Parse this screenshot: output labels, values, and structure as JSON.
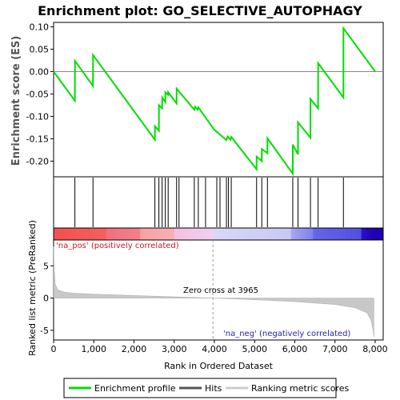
{
  "chart_data": {
    "type": "line",
    "title": "Enrichment plot: GO_SELECTIVE_AUTOPHAGY",
    "es_panel": {
      "ylabel": "Enrichment score (ES)",
      "ylim": [
        -0.235,
        0.11
      ],
      "yticks": [
        0.1,
        0.05,
        0.0,
        -0.05,
        -0.1,
        -0.15,
        -0.2
      ],
      "ytick_labels": [
        "0.10",
        "0.05",
        "0.00",
        "-0.05",
        "-0.10",
        "-0.15",
        "-0.20"
      ],
      "series": [
        {
          "name": "Enrichment profile",
          "color": "#00dd00",
          "x": [
            0,
            530,
            531,
            980,
            981,
            2520,
            2521,
            2620,
            2621,
            2700,
            2701,
            2780,
            2781,
            2850,
            2851,
            3060,
            3061,
            3500,
            3520,
            3580,
            3600,
            4000,
            4300,
            4330,
            4400,
            4420,
            5050,
            5051,
            5180,
            5181,
            5320,
            5321,
            5950,
            5951,
            6080,
            6081,
            6390,
            6391,
            6580,
            6581,
            7210,
            7211,
            8000
          ],
          "y": [
            0.0,
            -0.065,
            0.024,
            -0.032,
            0.037,
            -0.152,
            -0.122,
            -0.132,
            -0.075,
            -0.082,
            -0.058,
            -0.068,
            -0.046,
            -0.052,
            -0.046,
            -0.071,
            -0.038,
            -0.085,
            -0.078,
            -0.085,
            -0.08,
            -0.13,
            -0.153,
            -0.145,
            -0.152,
            -0.146,
            -0.218,
            -0.19,
            -0.2,
            -0.173,
            -0.182,
            -0.149,
            -0.228,
            -0.163,
            -0.185,
            -0.113,
            -0.148,
            -0.061,
            -0.082,
            0.019,
            -0.058,
            0.097,
            0.0
          ]
        }
      ]
    },
    "hits_panel": {
      "hit_positions": [
        530,
        980,
        2520,
        2620,
        2700,
        2780,
        2850,
        3060,
        3120,
        3500,
        3600,
        3780,
        4060,
        4140,
        4300,
        4350,
        4420,
        5050,
        5180,
        5320,
        5950,
        6080,
        6390,
        6580,
        7210
      ]
    },
    "ranked_panel": {
      "xlabel": "Rank in Ordered Dataset",
      "ylabel": "Ranked list metric (PreRanked)",
      "xlim": [
        0,
        8200
      ],
      "ylim": [
        -6.5,
        9.0
      ],
      "xticks": [
        0,
        1000,
        2000,
        3000,
        4000,
        5000,
        6000,
        7000,
        8000
      ],
      "xtick_labels": [
        "0",
        "1,000",
        "2,000",
        "3,000",
        "4,000",
        "5,000",
        "6,000",
        "7,000",
        "8,000"
      ],
      "yticks": [
        5,
        0,
        -5
      ],
      "ytick_labels": [
        "5",
        "0",
        "-5"
      ],
      "curve_x": [
        0,
        10,
        40,
        100,
        250,
        500,
        1000,
        2000,
        3000,
        3965,
        5000,
        6000,
        7000,
        7500,
        7800,
        7900,
        7950,
        7970
      ],
      "curve_y": [
        8.0,
        5.0,
        2.2,
        1.3,
        0.95,
        0.75,
        0.6,
        0.4,
        0.2,
        0.0,
        -0.25,
        -0.55,
        -1.0,
        -1.5,
        -2.3,
        -3.5,
        -5.0,
        -6.0
      ],
      "zero_cross_label": "Zero cross at 3965",
      "zero_cross_x": 3965,
      "pos_label": "'na_pos' (positively correlated)",
      "neg_label": "'na_neg' (negatively correlated)"
    },
    "gradient_stops": [
      {
        "x": 0,
        "color": "#f55050"
      },
      {
        "x": 1300,
        "color": "#f26060"
      },
      {
        "x": 1320,
        "color": "#f07080"
      },
      {
        "x": 2150,
        "color": "#f48088"
      },
      {
        "x": 2160,
        "color": "#f8a0a0"
      },
      {
        "x": 3000,
        "color": "#f8b0b8"
      },
      {
        "x": 3010,
        "color": "#f4c0e0"
      },
      {
        "x": 3965,
        "color": "#f0d0f0"
      },
      {
        "x": 3975,
        "color": "#d8d8f8"
      },
      {
        "x": 5900,
        "color": "#c8c8f4"
      },
      {
        "x": 5910,
        "color": "#a8a8f0"
      },
      {
        "x": 6450,
        "color": "#8080ee"
      },
      {
        "x": 6460,
        "color": "#6666e8"
      },
      {
        "x": 7650,
        "color": "#5050e0"
      },
      {
        "x": 7660,
        "color": "#2a10c8"
      },
      {
        "x": 7970,
        "color": "#2000b0"
      }
    ],
    "legend": {
      "placement": "bottom",
      "entries": [
        {
          "label": "Enrichment profile",
          "color": "#00dd00"
        },
        {
          "label": "Hits",
          "color": "#555555"
        },
        {
          "label": "Ranking metric scores",
          "color": "#cccccc"
        }
      ]
    }
  }
}
